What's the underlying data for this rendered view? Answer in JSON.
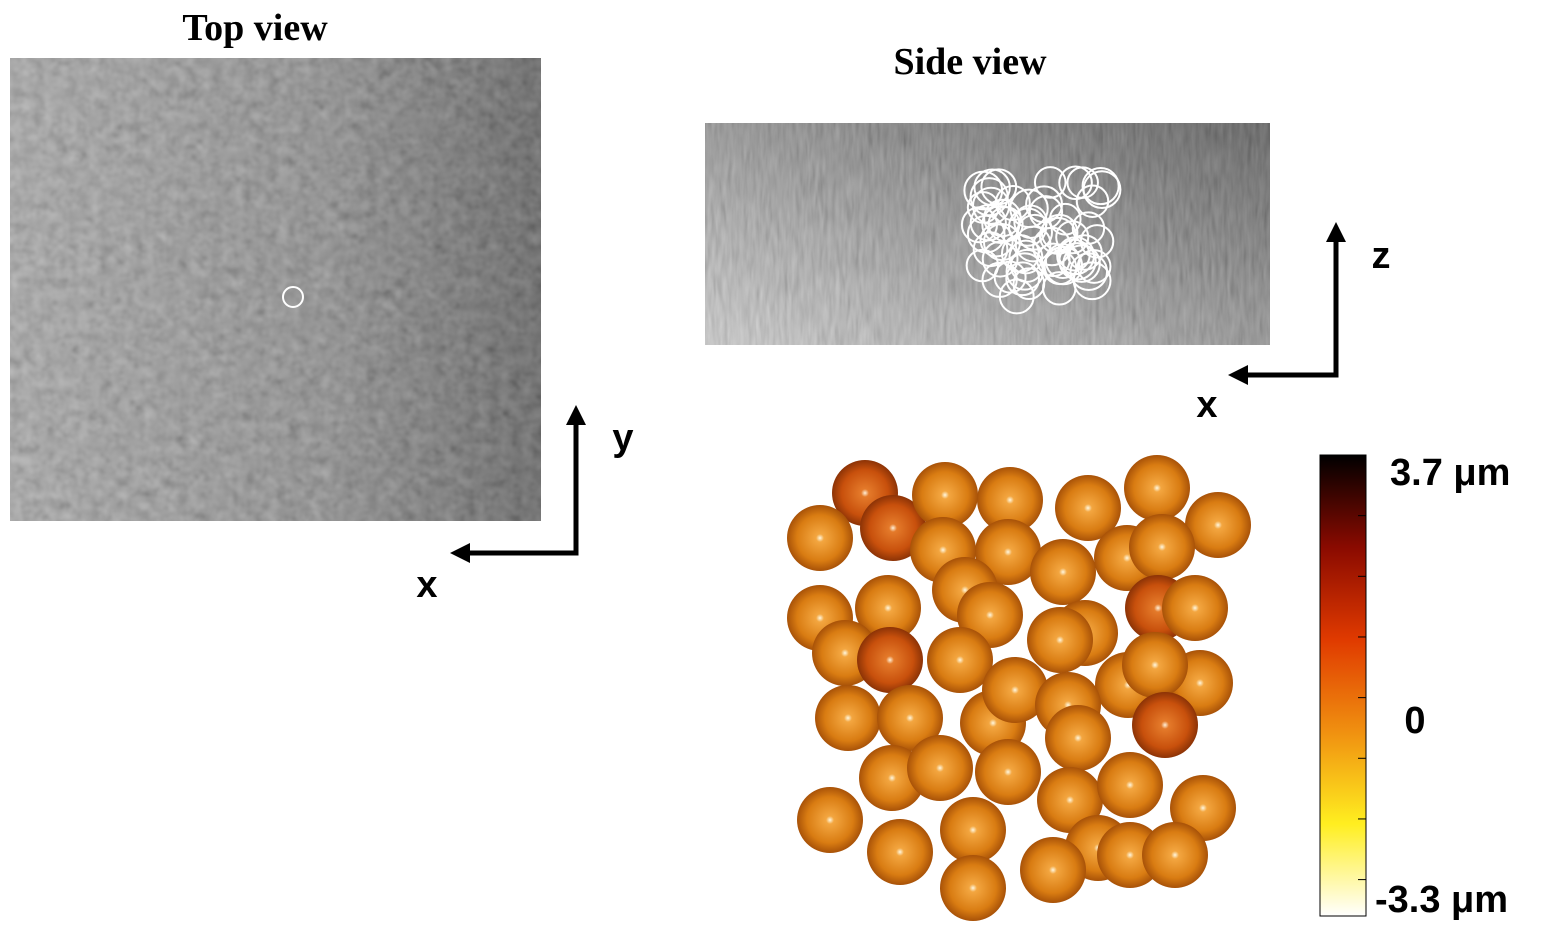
{
  "top_view": {
    "title": "Top view",
    "axis_x": "x",
    "axis_y": "y"
  },
  "side_view": {
    "title": "Side view",
    "axis_x": "x",
    "axis_z": "z"
  },
  "colorbar": {
    "top_label": "3.7 μm",
    "middle_label": "0",
    "bottom_label": "-3.3 μm"
  }
}
